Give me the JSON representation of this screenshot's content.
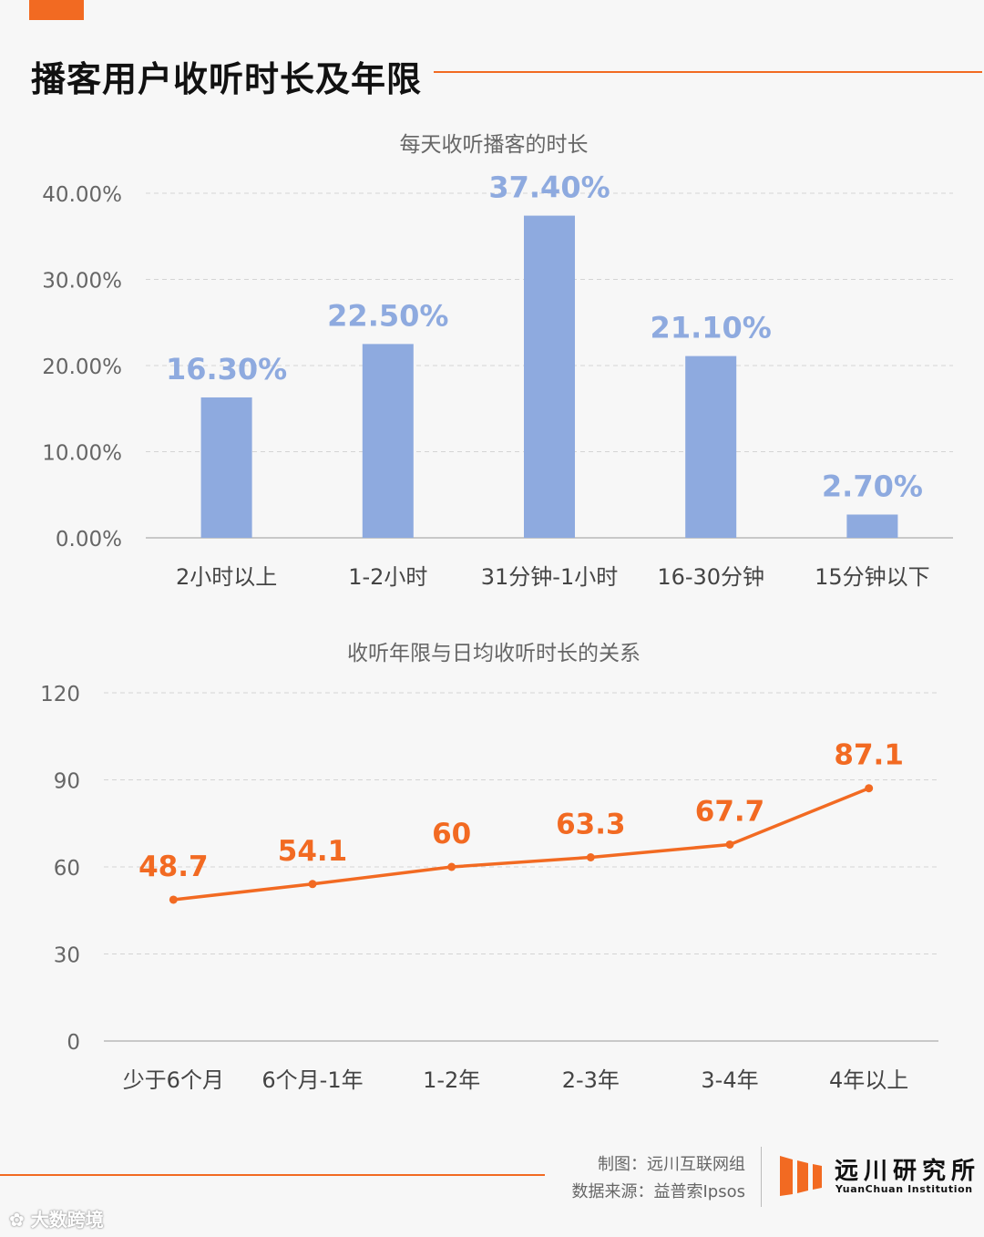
{
  "page": {
    "title": "播客用户收听时长及年限"
  },
  "chart_data": [
    {
      "type": "bar",
      "title": "每天收听播客的时长",
      "categories": [
        "2小时以上",
        "1-2小时",
        "31分钟-1小时",
        "16-30分钟",
        "15分钟以下"
      ],
      "values": [
        16.3,
        22.5,
        37.4,
        21.1,
        2.7
      ],
      "data_labels": [
        "16.30%",
        "22.50%",
        "37.40%",
        "21.10%",
        "2.70%"
      ],
      "yticks": [
        "0.00%",
        "10.00%",
        "20.00%",
        "30.00%",
        "40.00%"
      ],
      "ylim": [
        0,
        40
      ],
      "grid": true,
      "color": "#8eaadf"
    },
    {
      "type": "line",
      "title": "收听年限与日均收听时长的关系",
      "categories": [
        "少于6个月",
        "6个月-1年",
        "1-2年",
        "2-3年",
        "3-4年",
        "4年以上"
      ],
      "values": [
        48.7,
        54.1,
        60,
        63.3,
        67.7,
        87.1
      ],
      "data_labels": [
        "48.7",
        "54.1",
        "60",
        "63.3",
        "67.7",
        "87.1"
      ],
      "yticks": [
        "0",
        "30",
        "60",
        "90",
        "120"
      ],
      "ylim": [
        0,
        120
      ],
      "grid": true,
      "color": "#f26a22"
    }
  ],
  "footer": {
    "credit_maker": "制图：远川互联网组",
    "credit_source": "数据来源：益普索Ipsos",
    "logo_name": "远川研究所",
    "logo_sub": "YuanChuan Institution",
    "watermark": "大数跨境"
  }
}
